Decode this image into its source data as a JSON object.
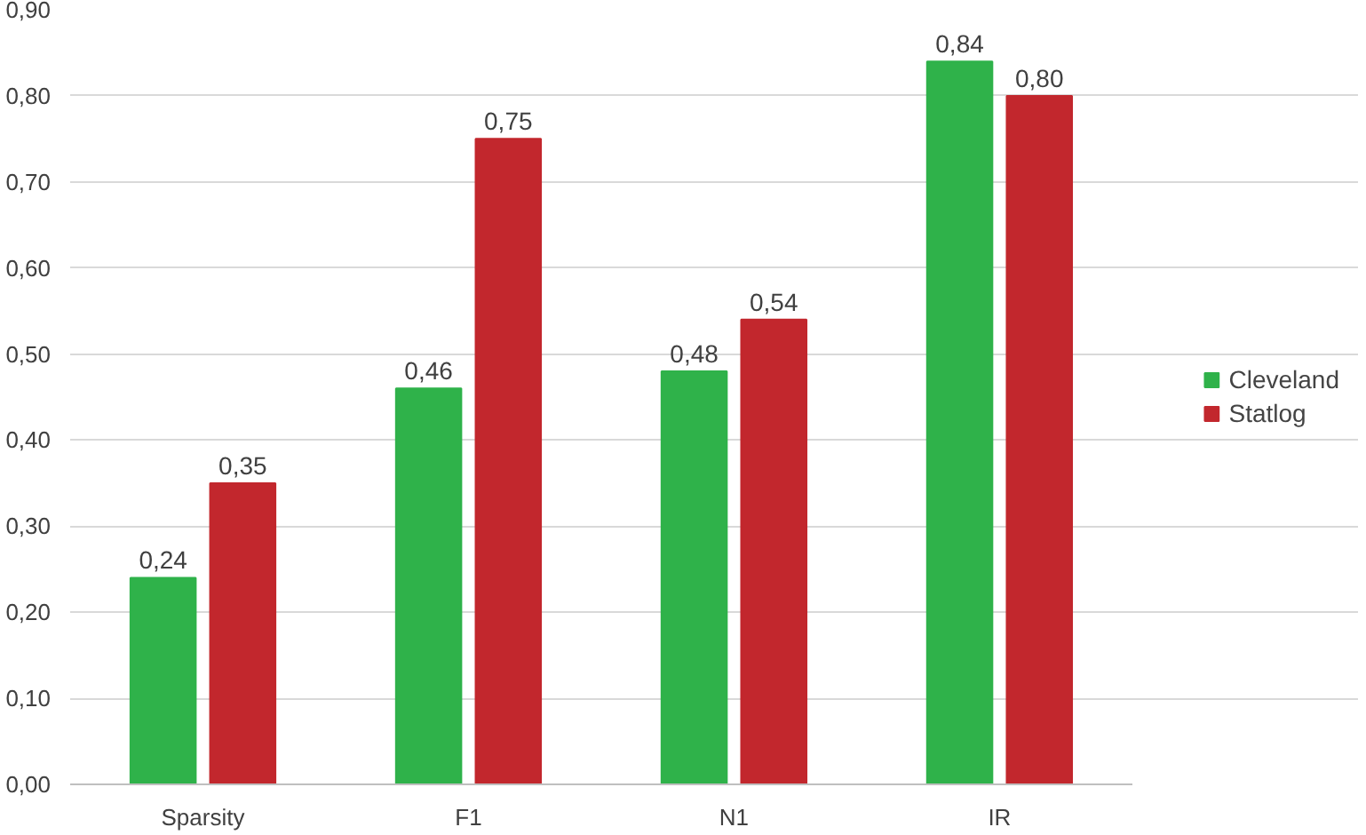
{
  "chart_data": {
    "type": "bar",
    "categories": [
      "Sparsity",
      "F1",
      "N1",
      "IR"
    ],
    "series": [
      {
        "name": "Cleveland",
        "color": "#2fb24a",
        "values": [
          0.24,
          0.46,
          0.48,
          0.84
        ],
        "value_labels": [
          "0,24",
          "0,46",
          "0,48",
          "0,84"
        ]
      },
      {
        "name": "Statlog",
        "color": "#c2272d",
        "values": [
          0.35,
          0.75,
          0.54,
          0.8
        ],
        "value_labels": [
          "0,35",
          "0,75",
          "0,54",
          "0,80"
        ]
      }
    ],
    "ylim": [
      0,
      0.9
    ],
    "yticks": [
      {
        "value": 0,
        "label": "0,00"
      },
      {
        "value": 0.1,
        "label": "0,10"
      },
      {
        "value": 0.2,
        "label": "0,20"
      },
      {
        "value": 0.3,
        "label": "0,30"
      },
      {
        "value": 0.4,
        "label": "0,40"
      },
      {
        "value": 0.5,
        "label": "0,50"
      },
      {
        "value": 0.6,
        "label": "0,60"
      },
      {
        "value": 0.7,
        "label": "0,70"
      },
      {
        "value": 0.8,
        "label": "0,80"
      },
      {
        "value": 0.9,
        "label": "0,90"
      }
    ],
    "grid": "y",
    "legend": "right"
  }
}
